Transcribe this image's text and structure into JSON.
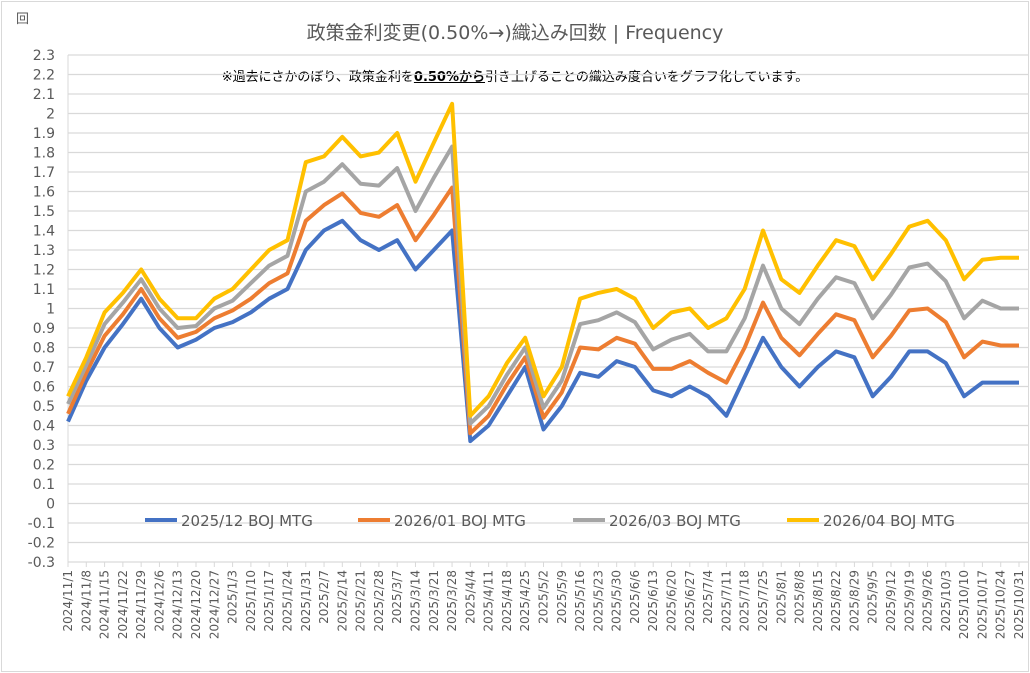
{
  "chart_data": {
    "type": "line",
    "title": "政策金利変更(0.50%→)織込み回数 | Frequency",
    "ylabel": "回",
    "annotation": {
      "prefix": "※過去にさかのぼり、政策金利を",
      "emphasis": "0.50%から",
      "suffix": "引き上げることの織込み度合いをグラフ化しています。"
    },
    "ylim": [
      -0.3,
      2.3
    ],
    "ytick_step": 0.1,
    "grid": true,
    "legend_placement": "bottom-inside",
    "categories": [
      "2024/11/1",
      "2024/11/8",
      "2024/11/15",
      "2024/11/22",
      "2024/11/29",
      "2024/12/6",
      "2024/12/13",
      "2024/12/20",
      "2024/12/27",
      "2025/1/3",
      "2025/1/10",
      "2025/1/17",
      "2025/1/24",
      "2025/1/31",
      "2025/2/7",
      "2025/2/14",
      "2025/2/21",
      "2025/2/28",
      "2025/3/7",
      "2025/3/14",
      "2025/3/21",
      "2025/3/28",
      "2025/4/4",
      "2025/4/11",
      "2025/4/18",
      "2025/4/25",
      "2025/5/2",
      "2025/5/9",
      "2025/5/16",
      "2025/5/23",
      "2025/5/30",
      "2025/6/6",
      "2025/6/13",
      "2025/6/20",
      "2025/6/27",
      "2025/7/4",
      "2025/7/11",
      "2025/7/18",
      "2025/7/25",
      "2025/8/1",
      "2025/8/8",
      "2025/8/15",
      "2025/8/22",
      "2025/8/29",
      "2025/9/5",
      "2025/9/12",
      "2025/9/19",
      "2025/9/26",
      "2025/10/3",
      "2025/10/10",
      "2025/10/17",
      "2025/10/24",
      "2025/10/31"
    ],
    "series": [
      {
        "name": "2025/12 BOJ MTG",
        "color": "#4472C4",
        "values": [
          0.42,
          0.63,
          0.8,
          0.92,
          1.05,
          0.9,
          0.8,
          0.84,
          0.9,
          0.93,
          0.98,
          1.05,
          1.1,
          1.3,
          1.4,
          1.45,
          1.35,
          1.3,
          1.35,
          1.2,
          1.3,
          1.4,
          0.32,
          0.4,
          0.55,
          0.7,
          0.38,
          0.5,
          0.67,
          0.65,
          0.73,
          0.7,
          0.58,
          0.55,
          0.6,
          0.55,
          0.45,
          0.65,
          0.85,
          0.7,
          0.6,
          0.7,
          0.78,
          0.75,
          0.55,
          0.65,
          0.78,
          0.78,
          0.72,
          0.55,
          0.62,
          0.62,
          0.62
        ]
      },
      {
        "name": "2026/01 BOJ MTG",
        "color": "#ED7D31",
        "values": [
          0.46,
          0.67,
          0.86,
          0.97,
          1.1,
          0.95,
          0.85,
          0.88,
          0.95,
          0.99,
          1.05,
          1.13,
          1.18,
          1.45,
          1.53,
          1.59,
          1.49,
          1.47,
          1.53,
          1.35,
          1.48,
          1.62,
          0.36,
          0.45,
          0.61,
          0.75,
          0.44,
          0.57,
          0.8,
          0.79,
          0.85,
          0.82,
          0.69,
          0.69,
          0.73,
          0.67,
          0.62,
          0.8,
          1.03,
          0.85,
          0.76,
          0.87,
          0.97,
          0.94,
          0.75,
          0.86,
          0.99,
          1.0,
          0.93,
          0.75,
          0.83,
          0.81,
          0.81
        ]
      },
      {
        "name": "2026/03 BOJ MTG",
        "color": "#A5A5A5",
        "values": [
          0.51,
          0.71,
          0.92,
          1.03,
          1.15,
          1.0,
          0.9,
          0.91,
          1.0,
          1.04,
          1.13,
          1.22,
          1.27,
          1.6,
          1.65,
          1.74,
          1.64,
          1.63,
          1.72,
          1.5,
          1.67,
          1.83,
          0.41,
          0.5,
          0.66,
          0.8,
          0.49,
          0.63,
          0.92,
          0.94,
          0.98,
          0.93,
          0.79,
          0.84,
          0.87,
          0.78,
          0.78,
          0.95,
          1.22,
          1.0,
          0.92,
          1.05,
          1.16,
          1.13,
          0.95,
          1.07,
          1.21,
          1.23,
          1.14,
          0.95,
          1.04,
          1.0,
          1.0
        ]
      },
      {
        "name": "2026/04 BOJ MTG",
        "color": "#FFC000",
        "values": [
          0.55,
          0.75,
          0.98,
          1.08,
          1.2,
          1.05,
          0.95,
          0.95,
          1.05,
          1.1,
          1.2,
          1.3,
          1.35,
          1.75,
          1.78,
          1.88,
          1.78,
          1.8,
          1.9,
          1.65,
          1.85,
          2.05,
          0.45,
          0.55,
          0.72,
          0.85,
          0.55,
          0.7,
          1.05,
          1.08,
          1.1,
          1.05,
          0.9,
          0.98,
          1.0,
          0.9,
          0.95,
          1.1,
          1.4,
          1.15,
          1.08,
          1.22,
          1.35,
          1.32,
          1.15,
          1.28,
          1.42,
          1.45,
          1.35,
          1.15,
          1.25,
          1.26,
          1.26
        ]
      }
    ]
  }
}
